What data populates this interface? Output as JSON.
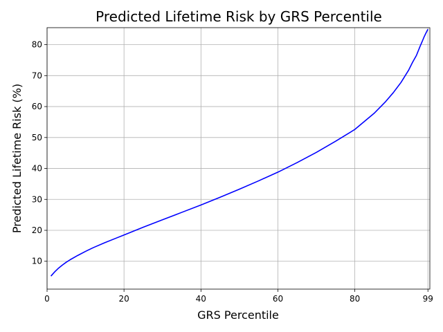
{
  "chart_data": {
    "type": "line",
    "title": "Predicted Lifetime Risk by GRS Percentile",
    "xlabel": "GRS Percentile",
    "ylabel": "Predicted Lifetime Risk (%)",
    "xlim": [
      0,
      99.5
    ],
    "ylim": [
      1,
      85.5
    ],
    "x_ticks": [
      0,
      20,
      40,
      60,
      80,
      99
    ],
    "y_ticks": [
      10,
      20,
      30,
      40,
      50,
      60,
      70,
      80
    ],
    "grid": true,
    "series": [
      {
        "color": "#0000ff",
        "x": [
          1,
          2,
          3,
          4,
          5,
          6,
          8,
          10,
          12,
          15,
          18,
          20,
          25,
          30,
          35,
          40,
          45,
          50,
          55,
          60,
          65,
          70,
          75,
          80,
          85,
          88,
          90,
          92,
          94,
          95,
          96,
          97,
          97.5,
          98,
          98.5,
          99
        ],
        "y": [
          5.2,
          6.6,
          7.8,
          8.8,
          9.7,
          10.5,
          11.9,
          13.2,
          14.4,
          16.0,
          17.5,
          18.5,
          21.0,
          23.4,
          25.8,
          28.2,
          30.7,
          33.3,
          36.0,
          38.8,
          41.9,
          45.2,
          48.8,
          52.6,
          57.8,
          61.6,
          64.5,
          67.8,
          71.8,
          74.3,
          76.5,
          79.6,
          81.0,
          82.5,
          83.8,
          85.0
        ]
      }
    ]
  }
}
